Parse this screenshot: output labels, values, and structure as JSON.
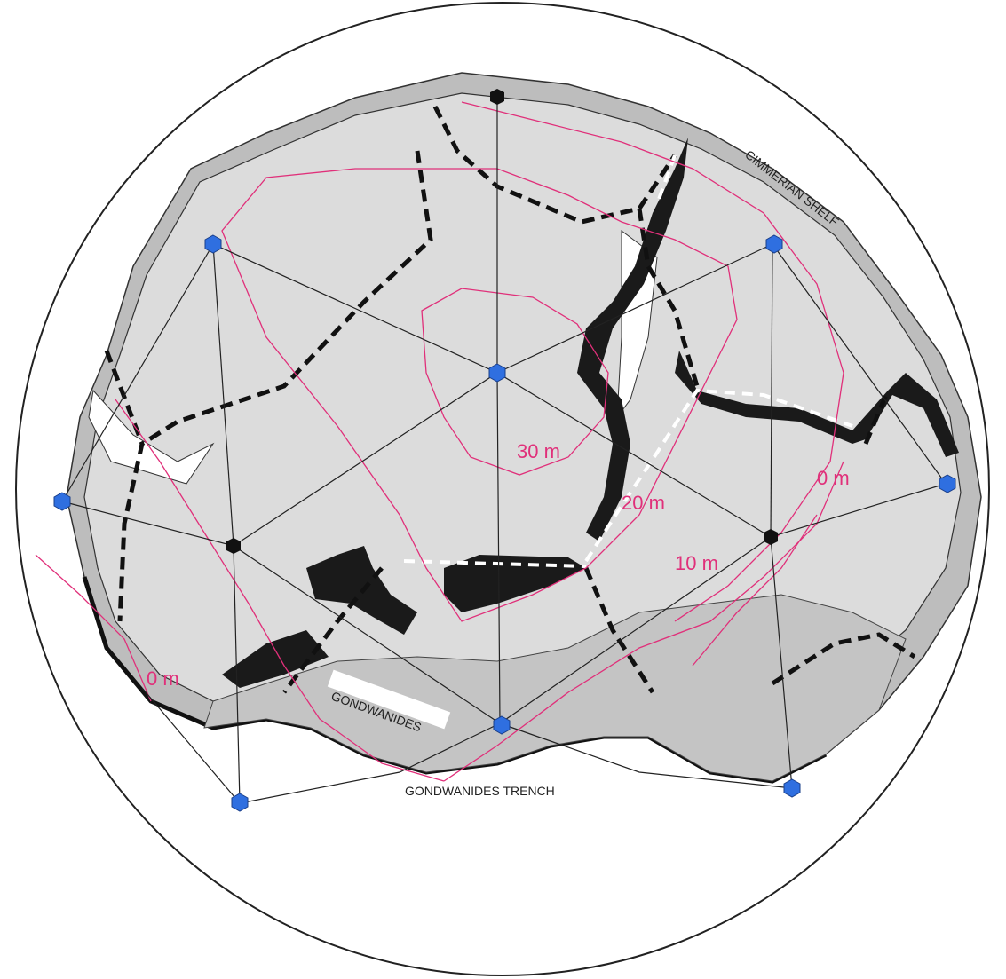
{
  "map": {
    "labels": {
      "cimmerian_shelf": "CIMMERIAN SHELF",
      "gondwanides": "GONDWANIDES",
      "gondwanides_trench": "GONDWANIDES TRENCH"
    },
    "contours": {
      "c30": "30 m",
      "c20": "20 m",
      "c10": "10 m",
      "c0_east": "0 m",
      "c0_west": "0 m"
    },
    "colors": {
      "land": "#dcdcdc",
      "shelf": "#bdbdbd",
      "basin": "#1a1a1a",
      "contour": "#e0307a",
      "node_blue": "#2f6fe0",
      "node_black": "#111111",
      "outline": "#222222"
    },
    "legend": {
      "node_blue": "blue-hexagon-node",
      "node_black": "black-hexagon-node"
    }
  }
}
